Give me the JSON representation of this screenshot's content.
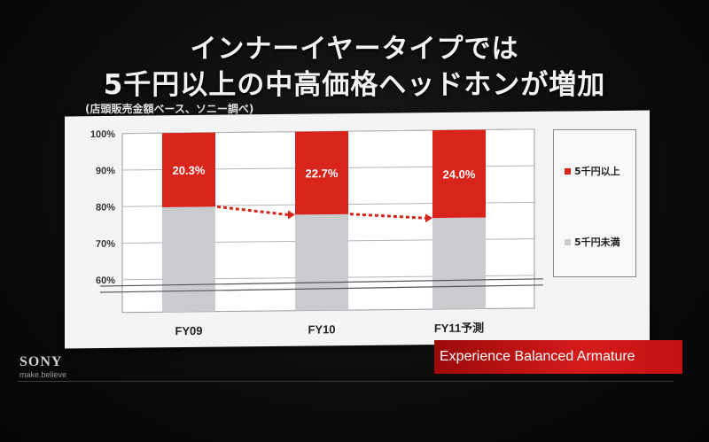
{
  "header": {
    "title_line1": "インナーイヤータイプでは",
    "title_line2": "5千円以上の中高価格ヘッドホンが増加",
    "subtitle": "(店頭販売金額ベース、ソニー調べ)"
  },
  "chart_data": {
    "type": "bar",
    "stacked": true,
    "categories": [
      "FY09",
      "FY10",
      "FY11予測"
    ],
    "series": [
      {
        "name": "5千円未満",
        "values": [
          79.7,
          77.3,
          76.0
        ],
        "color": "#c9cbce"
      },
      {
        "name": "5千円以上",
        "values": [
          20.3,
          22.7,
          24.0
        ],
        "color": "#d9241c"
      }
    ],
    "data_labels": [
      "20.3%",
      "22.7%",
      "24.0%"
    ],
    "y_ticks": [
      "100%",
      "90%",
      "80%",
      "70%",
      "60%"
    ],
    "ylim": [
      55,
      100
    ],
    "axis_break": true,
    "grid": true,
    "legend_position": "right",
    "annotations": "dotted red arrows between top of lower segments"
  },
  "legend": {
    "items": [
      {
        "label": "5千円以上",
        "color": "#d9241c"
      },
      {
        "label": "5千円未満",
        "color": "#c9cbce"
      }
    ]
  },
  "footer": {
    "banner_text": "Experience Balanced Armature",
    "brand": "SONY",
    "tagline": "make.believe"
  }
}
